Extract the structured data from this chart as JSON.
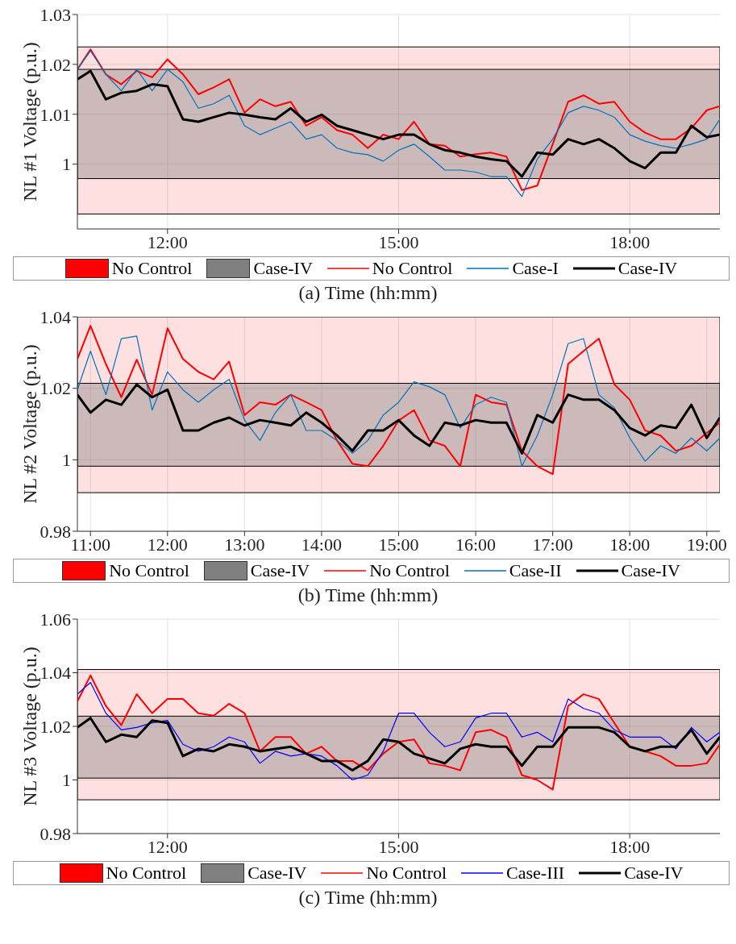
{
  "chart_data": [
    {
      "type": "line",
      "xlabel": "(a) Time (hh:mm)",
      "ylabel": "NL #1 Voltage (p.u.)",
      "xlim": [
        10.83,
        19.17
      ],
      "ylim": [
        0.987,
        1.03
      ],
      "xticks": [
        {
          "value": 12,
          "label": "12:00"
        },
        {
          "value": 15,
          "label": "15:00"
        },
        {
          "value": 18,
          "label": "18:00"
        }
      ],
      "yticks": [
        1,
        1.01,
        1.02,
        1.03
      ],
      "grid": true,
      "legend": "bottom",
      "line_style": "solid",
      "marker": "none",
      "bands": [
        {
          "axis": "y",
          "from": 0.99,
          "to": 1.0235,
          "label": "No Control",
          "color": "#ff0000"
        },
        {
          "axis": "y",
          "from": 0.9971,
          "to": 1.019,
          "label": "Case-IV",
          "color": "#808080"
        }
      ],
      "x": [
        10.83,
        11,
        11.2,
        11.4,
        11.6,
        11.8,
        12,
        12.2,
        12.4,
        12.6,
        12.8,
        13,
        13.2,
        13.4,
        13.6,
        13.8,
        14,
        14.2,
        14.4,
        14.6,
        14.8,
        15,
        15.2,
        15.4,
        15.6,
        15.8,
        16,
        16.2,
        16.4,
        16.6,
        16.8,
        17,
        17.2,
        17.4,
        17.6,
        17.8,
        18,
        18.2,
        18.4,
        18.6,
        18.8,
        19,
        19.17
      ],
      "series": [
        {
          "name": "No Control",
          "color": "#ff0000",
          "values": [
            1.019,
            1.023,
            1.018,
            1.016,
            1.0187,
            1.0174,
            1.021,
            1.018,
            1.014,
            1.0154,
            1.017,
            1.0103,
            1.013,
            1.0116,
            1.0125,
            1.0077,
            1.0094,
            1.0068,
            1.0059,
            1.0032,
            1.0059,
            1.005,
            1.0085,
            1.004,
            1.0037,
            1.0015,
            1.002,
            1.0023,
            1.0015,
            0.9948,
            0.9957,
            1.004,
            1.0125,
            1.0138,
            1.0121,
            1.0125,
            1.0085,
            1.0063,
            1.005,
            1.005,
            1.0072,
            1.0108,
            1.0116
          ]
        },
        {
          "name": "Case-I",
          "color": "#0072bd",
          "values": [
            1.019,
            1.0227,
            1.018,
            1.0147,
            1.019,
            1.0147,
            1.019,
            1.0165,
            1.0112,
            1.0121,
            1.0138,
            1.0077,
            1.0059,
            1.0072,
            1.0085,
            1.005,
            1.0059,
            1.0032,
            1.0023,
            1.0019,
            1.0006,
            1.0028,
            1.004,
            1.0015,
            0.9988,
            0.9988,
            0.9984,
            0.9975,
            0.9975,
            0.9935,
            1.001,
            1.005,
            1.0103,
            1.0116,
            1.0108,
            1.0094,
            1.0059,
            1.0046,
            1.0037,
            1.0032,
            1.004,
            1.005,
            1.009
          ]
        },
        {
          "name": "Case-IV",
          "color": "#000000",
          "values": [
            1.017,
            1.0187,
            1.013,
            1.0143,
            1.0147,
            1.016,
            1.0156,
            1.009,
            1.0085,
            1.0094,
            1.0103,
            1.0099,
            1.0094,
            1.009,
            1.0112,
            1.0085,
            1.0099,
            1.0077,
            1.0068,
            1.0059,
            1.005,
            1.0059,
            1.0059,
            1.004,
            1.0028,
            1.0023,
            1.0015,
            1.001,
            1.0006,
            0.9975,
            1.0023,
            1.0019,
            1.005,
            1.004,
            1.005,
            1.0032,
            1.0006,
            0.9992,
            1.0023,
            1.0023,
            1.0077,
            1.0054,
            1.0059
          ]
        }
      ]
    },
    {
      "type": "line",
      "xlabel": "(b)  Time (hh:mm)",
      "ylabel": "NL #2 Voltage (p.u.)",
      "xlim": [
        10.83,
        19.17
      ],
      "ylim": [
        0.98,
        1.04
      ],
      "xticks": [
        {
          "value": 11,
          "label": "11:00"
        },
        {
          "value": 12,
          "label": "12:00"
        },
        {
          "value": 13,
          "label": "13:00"
        },
        {
          "value": 14,
          "label": "14:00"
        },
        {
          "value": 15,
          "label": "15:00"
        },
        {
          "value": 16,
          "label": "16:00"
        },
        {
          "value": 17,
          "label": "17:00"
        },
        {
          "value": 18,
          "label": "18:00"
        },
        {
          "value": 19,
          "label": "19:00"
        }
      ],
      "yticks": [
        0.98,
        1,
        1.02,
        1.04
      ],
      "grid": true,
      "legend": "bottom",
      "line_style": "solid",
      "marker": "none",
      "bands": [
        {
          "axis": "y",
          "from": 0.9908,
          "to": 1.04,
          "label": "No Control",
          "color": "#ff0000"
        },
        {
          "axis": "y",
          "from": 0.9982,
          "to": 1.0214,
          "label": "Case-IV",
          "color": "#808080"
        }
      ],
      "x": [
        10.83,
        11,
        11.2,
        11.4,
        11.6,
        11.8,
        12,
        12.2,
        12.4,
        12.6,
        12.8,
        13,
        13.2,
        13.4,
        13.6,
        13.8,
        14,
        14.2,
        14.4,
        14.6,
        14.8,
        15,
        15.2,
        15.4,
        15.6,
        15.8,
        16,
        16.2,
        16.4,
        16.6,
        16.8,
        17,
        17.2,
        17.4,
        17.6,
        17.8,
        18,
        18.2,
        18.4,
        18.6,
        18.8,
        19,
        19.17
      ],
      "series": [
        {
          "name": "No Control",
          "color": "#ff0000",
          "values": [
            1.0282,
            1.0375,
            1.0268,
            1.0175,
            1.028,
            1.0182,
            1.0368,
            1.0282,
            1.0246,
            1.0225,
            1.0275,
            1.0125,
            1.0161,
            1.0154,
            1.0182,
            1.0161,
            1.0139,
            1.0054,
            0.9989,
            0.9982,
            1.0039,
            1.011,
            1.0139,
            1.0054,
            1.0039,
            0.9982,
            1.0182,
            1.0161,
            1.0154,
            1.0025,
            0.9982,
            0.996,
            1.0268,
            1.0304,
            1.0339,
            1.0211,
            1.0168,
            1.0082,
            1.0068,
            1.0025,
            1.0039,
            1.0075,
            1.0104
          ]
        },
        {
          "name": "Case-II",
          "color": "#0072bd",
          "values": [
            1.0196,
            1.0304,
            1.0182,
            1.0339,
            1.0346,
            1.0139,
            1.0246,
            1.0196,
            1.0161,
            1.0196,
            1.0225,
            1.0111,
            1.0054,
            1.0132,
            1.0182,
            1.0082,
            1.0082,
            1.0054,
            1.0018,
            1.0054,
            1.0125,
            1.0161,
            1.0218,
            1.0204,
            1.0182,
            1.0089,
            1.0154,
            1.0175,
            1.0161,
            0.9982,
            1.0068,
            1.0182,
            1.0325,
            1.0339,
            1.0182,
            1.0146,
            1.0061,
            0.9996,
            1.0039,
            1.0018,
            1.0061,
            1.0025,
            1.0061
          ]
        },
        {
          "name": "Case-IV",
          "color": "#000000",
          "values": [
            1.0182,
            1.0132,
            1.0168,
            1.0154,
            1.0211,
            1.0175,
            1.0196,
            1.0082,
            1.0082,
            1.0104,
            1.0118,
            1.0096,
            1.0111,
            1.0104,
            1.0096,
            1.0132,
            1.0104,
            1.0068,
            1.0025,
            1.0082,
            1.0082,
            1.0111,
            1.0068,
            1.0039,
            1.0104,
            1.0096,
            1.0111,
            1.0104,
            1.0104,
            1.0018,
            1.0125,
            1.0104,
            1.0182,
            1.0168,
            1.0168,
            1.0139,
            1.0089,
            1.0068,
            1.0096,
            1.0089,
            1.0154,
            1.0061,
            1.0118
          ]
        }
      ]
    },
    {
      "type": "line",
      "xlabel": "(c)  Time (hh:mm)",
      "ylabel": "NL #3 Voltage (p.u.)",
      "xlim": [
        10.83,
        19.17
      ],
      "ylim": [
        0.98,
        1.06
      ],
      "xticks": [
        {
          "value": 12,
          "label": "12:00"
        },
        {
          "value": 15,
          "label": "15:00"
        },
        {
          "value": 18,
          "label": "18:00"
        }
      ],
      "yticks": [
        0.98,
        1,
        1.02,
        1.04,
        1.06
      ],
      "grid": true,
      "legend": "bottom",
      "line_style": "solid",
      "marker": "none",
      "bands": [
        {
          "axis": "y",
          "from": 0.9926,
          "to": 1.0412,
          "label": "No Control",
          "color": "#ff0000"
        },
        {
          "axis": "y",
          "from": 1.0007,
          "to": 1.0238,
          "label": "Case-IV",
          "color": "#808080"
        }
      ],
      "x": [
        10.83,
        11,
        11.2,
        11.4,
        11.6,
        11.8,
        12,
        12.2,
        12.4,
        12.6,
        12.8,
        13,
        13.2,
        13.4,
        13.6,
        13.8,
        14,
        14.2,
        14.4,
        14.6,
        14.8,
        15,
        15.2,
        15.4,
        15.6,
        15.8,
        16,
        16.2,
        16.4,
        16.6,
        16.8,
        17,
        17.2,
        17.4,
        17.6,
        17.8,
        18,
        18.2,
        18.4,
        18.6,
        18.8,
        19,
        19.17
      ],
      "series": [
        {
          "name": "No Control",
          "color": "#ff0000",
          "values": [
            1.0293,
            1.039,
            1.0276,
            1.0204,
            1.032,
            1.0249,
            1.0302,
            1.0302,
            1.0249,
            1.024,
            1.0284,
            1.0249,
            1.0107,
            1.016,
            1.016,
            1.0098,
            1.0124,
            1.0071,
            1.0071,
            1.0036,
            1.0098,
            1.0142,
            1.0151,
            1.0062,
            1.0053,
            1.0036,
            1.0178,
            1.0187,
            1.016,
            1.0018,
            1.0,
            0.9964,
            1.0276,
            1.032,
            1.0302,
            1.0213,
            1.0124,
            1.0107,
            1.0089,
            1.0053,
            1.0053,
            1.0062,
            1.0133
          ]
        },
        {
          "name": "Case-III",
          "color": "#0000ff",
          "values": [
            1.032,
            1.0364,
            1.0249,
            1.0187,
            1.0196,
            1.0213,
            1.0222,
            1.0133,
            1.0107,
            1.0124,
            1.016,
            1.0142,
            1.0062,
            1.0107,
            1.0089,
            1.0098,
            1.0089,
            1.0053,
            1.0,
            1.0018,
            1.0107,
            1.0249,
            1.0249,
            1.0178,
            1.0124,
            1.0142,
            1.0231,
            1.0249,
            1.0249,
            1.016,
            1.0178,
            1.0142,
            1.0302,
            1.0267,
            1.0249,
            1.0187,
            1.016,
            1.016,
            1.016,
            1.0116,
            1.0196,
            1.0142,
            1.0178
          ]
        },
        {
          "name": "Case-IV",
          "color": "#000000",
          "values": [
            1.0196,
            1.0231,
            1.0142,
            1.0169,
            1.016,
            1.0222,
            1.0213,
            1.0089,
            1.0116,
            1.0107,
            1.0133,
            1.0124,
            1.0107,
            1.0116,
            1.0124,
            1.0098,
            1.0071,
            1.0071,
            1.0036,
            1.0071,
            1.0151,
            1.0142,
            1.0098,
            1.008,
            1.0062,
            1.0116,
            1.0133,
            1.0124,
            1.0124,
            1.0053,
            1.0124,
            1.0124,
            1.0196,
            1.0196,
            1.0196,
            1.0178,
            1.0124,
            1.0107,
            1.0124,
            1.0124,
            1.0187,
            1.0098,
            1.016
          ]
        }
      ]
    }
  ]
}
